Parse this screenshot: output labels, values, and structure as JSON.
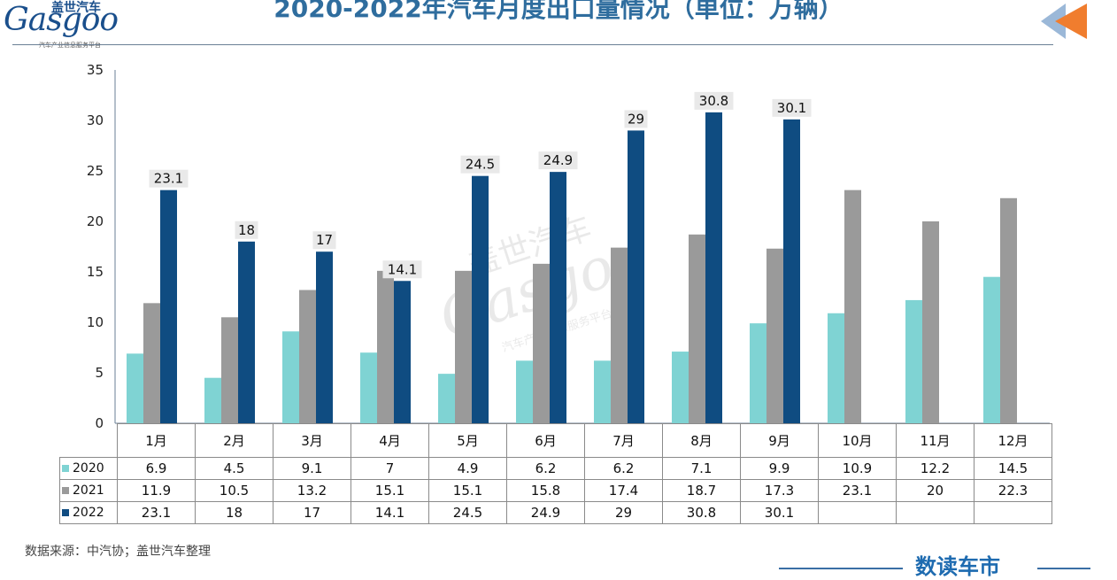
{
  "header": {
    "title": "2020-2022年汽车月度出口量情况（单位：万辆）",
    "logo_text": "Gasgoo",
    "logo_cn": "盖世汽车",
    "logo_sub": "汽车产业信息服务平台"
  },
  "watermark": {
    "text": "Gasgoo",
    "cn": "盖世汽车",
    "sub": "汽车产业信息服务平台"
  },
  "colors": {
    "2020": "#7fd3d3",
    "2021": "#9a9a9a",
    "2022": "#0f4c81",
    "axis": "#6a7f95",
    "title": "#2f6d9e"
  },
  "chart_data": {
    "type": "bar",
    "title": "2020-2022年汽车月度出口量情况（单位：万辆）",
    "categories": [
      "1月",
      "2月",
      "3月",
      "4月",
      "5月",
      "6月",
      "7月",
      "8月",
      "9月",
      "10月",
      "11月",
      "12月"
    ],
    "series": [
      {
        "name": "2020",
        "values": [
          6.9,
          4.5,
          9.1,
          7,
          4.9,
          6.2,
          6.2,
          7.1,
          9.9,
          10.9,
          12.2,
          14.5
        ],
        "show_labels": false
      },
      {
        "name": "2021",
        "values": [
          11.9,
          10.5,
          13.2,
          15.1,
          15.1,
          15.8,
          17.4,
          18.7,
          17.3,
          23.1,
          20,
          22.3
        ],
        "show_labels": false
      },
      {
        "name": "2022",
        "values": [
          23.1,
          18,
          17,
          14.1,
          24.5,
          24.9,
          29,
          30.8,
          30.1,
          null,
          null,
          null
        ],
        "show_labels": true
      }
    ],
    "ylim": [
      0,
      35
    ],
    "yticks": [
      0,
      5,
      10,
      15,
      20,
      25,
      30,
      35
    ],
    "xlabel": "",
    "ylabel": "",
    "grid": false,
    "legend": "table-below"
  },
  "table": {
    "rows": [
      {
        "label": "2020",
        "values": [
          "6.9",
          "4.5",
          "9.1",
          "7",
          "4.9",
          "6.2",
          "6.2",
          "7.1",
          "9.9",
          "10.9",
          "12.2",
          "14.5"
        ]
      },
      {
        "label": "2021",
        "values": [
          "11.9",
          "10.5",
          "13.2",
          "15.1",
          "15.1",
          "15.8",
          "17.4",
          "18.7",
          "17.3",
          "23.1",
          "20",
          "22.3"
        ]
      },
      {
        "label": "2022",
        "values": [
          "23.1",
          "18",
          "17",
          "14.1",
          "24.5",
          "24.9",
          "29",
          "30.8",
          "30.1",
          "",
          "",
          ""
        ]
      }
    ]
  },
  "footer": {
    "source": "数据来源：中汽协；盖世汽车整理",
    "brand": "数读车市"
  }
}
